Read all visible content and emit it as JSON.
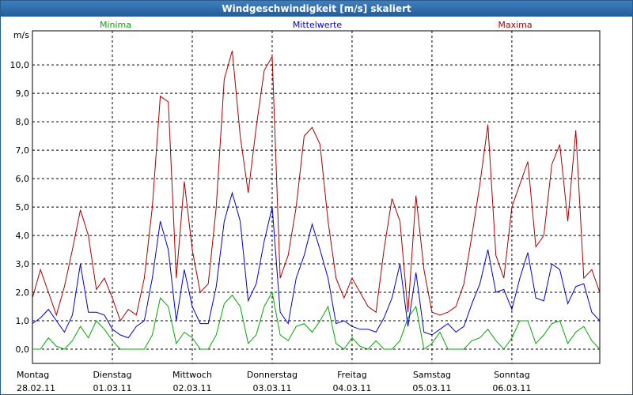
{
  "window": {
    "title": "Windgeschwindigkeit [m/s] skaliert"
  },
  "colors": {
    "minima": "#00aa00",
    "mittel": "#0000cc",
    "maxima": "#aa0000",
    "grid": "#000000"
  },
  "chart_data": {
    "type": "line",
    "title": "Windgeschwindigkeit [m/s] skaliert",
    "ylabel": "m/s",
    "xlabel": "",
    "ylim": [
      -0.5,
      11.2
    ],
    "xlim": [
      0,
      7.1
    ],
    "yticks": [
      "0,0",
      "1,0",
      "2,0",
      "3,0",
      "4,0",
      "5,0",
      "6,0",
      "7,0",
      "8,0",
      "9,0",
      "10,0"
    ],
    "days": [
      {
        "name": "Montag",
        "date": "28.02.11"
      },
      {
        "name": "Dienstag",
        "date": "01.03.11"
      },
      {
        "name": "Mittwoch",
        "date": "02.03.11"
      },
      {
        "name": "Donnerstag",
        "date": "03.03.11"
      },
      {
        "name": "Freitag",
        "date": "04.03.11"
      },
      {
        "name": "Samstag",
        "date": "05.03.11"
      },
      {
        "name": "Sonntag",
        "date": "06.03.11"
      }
    ],
    "legend_position": "top",
    "x": [
      0,
      0.1,
      0.2,
      0.3,
      0.4,
      0.5,
      0.6,
      0.7,
      0.8,
      0.9,
      1.0,
      1.1,
      1.2,
      1.3,
      1.4,
      1.5,
      1.6,
      1.7,
      1.8,
      1.9,
      2.0,
      2.1,
      2.2,
      2.3,
      2.4,
      2.5,
      2.6,
      2.7,
      2.8,
      2.9,
      3.0,
      3.1,
      3.2,
      3.3,
      3.4,
      3.5,
      3.6,
      3.7,
      3.8,
      3.9,
      4.0,
      4.1,
      4.2,
      4.3,
      4.4,
      4.5,
      4.6,
      4.7,
      4.8,
      4.9,
      5.0,
      5.1,
      5.2,
      5.3,
      5.4,
      5.5,
      5.6,
      5.7,
      5.8,
      5.9,
      6.0,
      6.1,
      6.2,
      6.3,
      6.4,
      6.5,
      6.6,
      6.7,
      6.8,
      6.9,
      7.0,
      7.1
    ],
    "series": [
      {
        "name": "Minima",
        "values": [
          0,
          0,
          0.4,
          0.1,
          0,
          0.3,
          0.8,
          0.4,
          1.0,
          0.7,
          0.3,
          0,
          0,
          0,
          0,
          0.5,
          1.8,
          1.5,
          0.2,
          0.6,
          0.4,
          0,
          0,
          0.5,
          1.6,
          1.9,
          1.5,
          0.2,
          0.5,
          1.5,
          2.0,
          0.5,
          0.3,
          0.8,
          0.9,
          0.6,
          1.0,
          1.5,
          0.2,
          0,
          0.4,
          0.1,
          0,
          0.3,
          0,
          0,
          0.3,
          1.1,
          1.5,
          0,
          0.2,
          0.6,
          0,
          0,
          0,
          0.3,
          0.4,
          0.7,
          0.3,
          0,
          0.4,
          1.0,
          1.0,
          0.2,
          0.5,
          0.9,
          1.0,
          0.2,
          0.6,
          0.8,
          0.3,
          0
        ]
      },
      {
        "name": "Mittelwerte",
        "values": [
          0.9,
          1.1,
          1.4,
          1.0,
          0.6,
          1.2,
          3.0,
          1.3,
          1.3,
          1.2,
          0.7,
          0.5,
          0.4,
          0.8,
          1.0,
          2.5,
          4.5,
          3.5,
          1.0,
          2.8,
          1.5,
          0.9,
          0.9,
          2.2,
          4.5,
          5.5,
          4.5,
          1.7,
          2.3,
          3.8,
          5.0,
          1.3,
          0.9,
          2.5,
          3.3,
          4.4,
          3.5,
          2.5,
          0.9,
          1.0,
          0.8,
          0.7,
          0.7,
          0.6,
          1.1,
          1.8,
          3.0,
          0.8,
          2.7,
          0.6,
          0.5,
          0.7,
          0.9,
          0.6,
          0.8,
          1.6,
          2.3,
          3.5,
          2.0,
          2.1,
          1.4,
          2.5,
          3.4,
          1.8,
          1.7,
          3.0,
          2.8,
          1.6,
          2.2,
          2.3,
          1.3,
          1.0
        ]
      },
      {
        "name": "Maxima",
        "values": [
          1.8,
          2.8,
          2.0,
          1.2,
          2.2,
          3.5,
          4.9,
          4.0,
          2.1,
          2.5,
          1.8,
          1.0,
          1.4,
          1.2,
          2.5,
          5.0,
          8.9,
          8.7,
          2.5,
          5.9,
          3.5,
          2.0,
          2.3,
          5.0,
          9.5,
          10.5,
          7.5,
          5.5,
          7.8,
          9.8,
          10.3,
          2.5,
          3.3,
          5.0,
          7.5,
          7.8,
          7.2,
          4.5,
          2.5,
          1.8,
          2.5,
          2.0,
          1.5,
          1.3,
          3.5,
          5.3,
          4.5,
          1.3,
          5.4,
          2.8,
          1.3,
          1.2,
          1.3,
          1.5,
          2.3,
          4.0,
          5.8,
          7.9,
          3.3,
          2.5,
          5.0,
          5.8,
          6.6,
          3.6,
          4.0,
          6.5,
          7.2,
          4.5,
          7.7,
          2.5,
          2.8,
          2.0
        ]
      }
    ]
  }
}
